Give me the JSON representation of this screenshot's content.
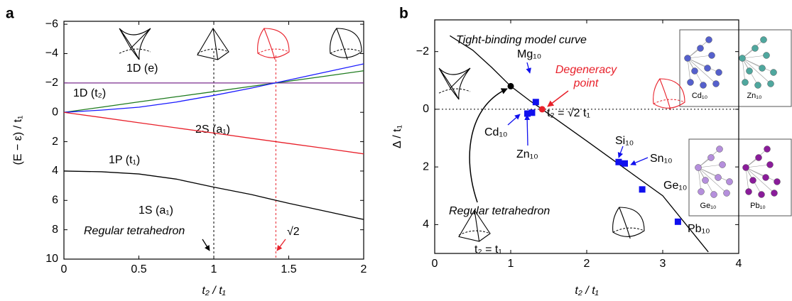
{
  "chart_data": [
    {
      "type": "line",
      "panel": "a",
      "xlabel": "t₂ / t₁",
      "ylabel": "(E − ε) / t₁",
      "x": [
        0,
        0.25,
        0.5,
        0.75,
        1,
        1.25,
        1.5,
        1.75,
        2
      ],
      "xlim": [
        0,
        2
      ],
      "xticks": [
        0,
        0.5,
        1,
        1.5,
        2
      ],
      "ylim": [
        -6.2,
        10
      ],
      "yinverted": true,
      "yticks": [
        {
          "value": -6,
          "label": "−6"
        },
        {
          "value": -4,
          "label": "−4"
        },
        {
          "value": -2,
          "label": "−2"
        },
        0,
        2,
        4,
        6,
        8,
        10
      ],
      "series": [
        {
          "name": "1D (e)",
          "color": "#7b2d8e",
          "values": [
            -2,
            -2,
            -2,
            -2,
            -2,
            -2,
            -2,
            -2,
            -2
          ]
        },
        {
          "name": "1D (t₂)",
          "color": "#1e7b1e",
          "values": [
            0,
            -0.35,
            -0.71,
            -1.06,
            -1.41,
            -1.77,
            -2.12,
            -2.47,
            -2.83
          ]
        },
        {
          "name": "2S (a₁)",
          "color": "#1a1aff",
          "values": [
            0,
            -0.15,
            -0.35,
            -0.7,
            -1.15,
            -1.65,
            -2.2,
            -2.75,
            -3.3
          ]
        },
        {
          "name": "1P (t₁)",
          "color": "#e8202a",
          "values": [
            0,
            0.35,
            0.71,
            1.06,
            1.41,
            1.77,
            2.12,
            2.47,
            2.83
          ]
        },
        {
          "name": "1S (a₁)",
          "color": "#000000",
          "values": [
            4,
            4.05,
            4.2,
            4.55,
            5.1,
            5.6,
            6.2,
            6.75,
            7.3
          ]
        }
      ],
      "vlines": [
        {
          "x": 1,
          "color": "#000000"
        },
        {
          "x": 1.414,
          "color": "#e8202a"
        }
      ],
      "annotations": [
        {
          "text": "Regular tetrahedron",
          "color": "#000000"
        },
        {
          "text": "√2",
          "color": "#e8202a"
        }
      ]
    },
    {
      "type": "line",
      "panel": "b",
      "xlabel": "t₂ / t₁",
      "ylabel": "Δ / t₁",
      "xlim": [
        0,
        4
      ],
      "xticks": [
        0,
        1,
        2,
        3,
        4
      ],
      "ylim": [
        -3.1,
        5
      ],
      "yinverted": true,
      "yticks": [
        {
          "value": -2,
          "label": "−2"
        },
        0,
        2,
        4
      ],
      "series": [
        {
          "name": "Tight-binding model curve",
          "color": "#000000",
          "x": [
            0.2,
            0.5,
            0.75,
            1,
            1.25,
            1.414,
            2,
            2.5,
            3,
            3.6
          ],
          "values": [
            -2.55,
            -2.05,
            -1.45,
            -0.8,
            -0.3,
            0,
            1.1,
            2.05,
            3.0,
            4.95
          ]
        }
      ],
      "hlines": [
        0
      ],
      "points": {
        "color": "#1010ee",
        "labels": [
          "Mg₁₀",
          "Cd₁₀",
          "Zn₁₀",
          "Si₁₀",
          "Sn₁₀",
          "Ge₁₀",
          "Pb₁₀"
        ],
        "x": [
          1.33,
          1.22,
          1.28,
          2.42,
          2.5,
          2.73,
          3.2
        ],
        "values": [
          -0.25,
          0.15,
          0.12,
          1.83,
          1.88,
          2.78,
          3.9
        ]
      },
      "markers": [
        {
          "name": "Regular tetrahedron",
          "x": 1,
          "value": -0.8,
          "color": "#000000"
        },
        {
          "name": "Degeneracy point",
          "x": 1.414,
          "value": 0,
          "color": "#e8202a"
        }
      ],
      "annotations": [
        {
          "text": "t₂ = √2 t₁",
          "color": "#e8202a"
        },
        {
          "text": "t₂ = t₁",
          "color": "#000000"
        }
      ],
      "inset_labels": [
        "Cd₁₀",
        "Zn₁₀",
        "Ge₁₀",
        "Pb₁₀"
      ]
    }
  ]
}
